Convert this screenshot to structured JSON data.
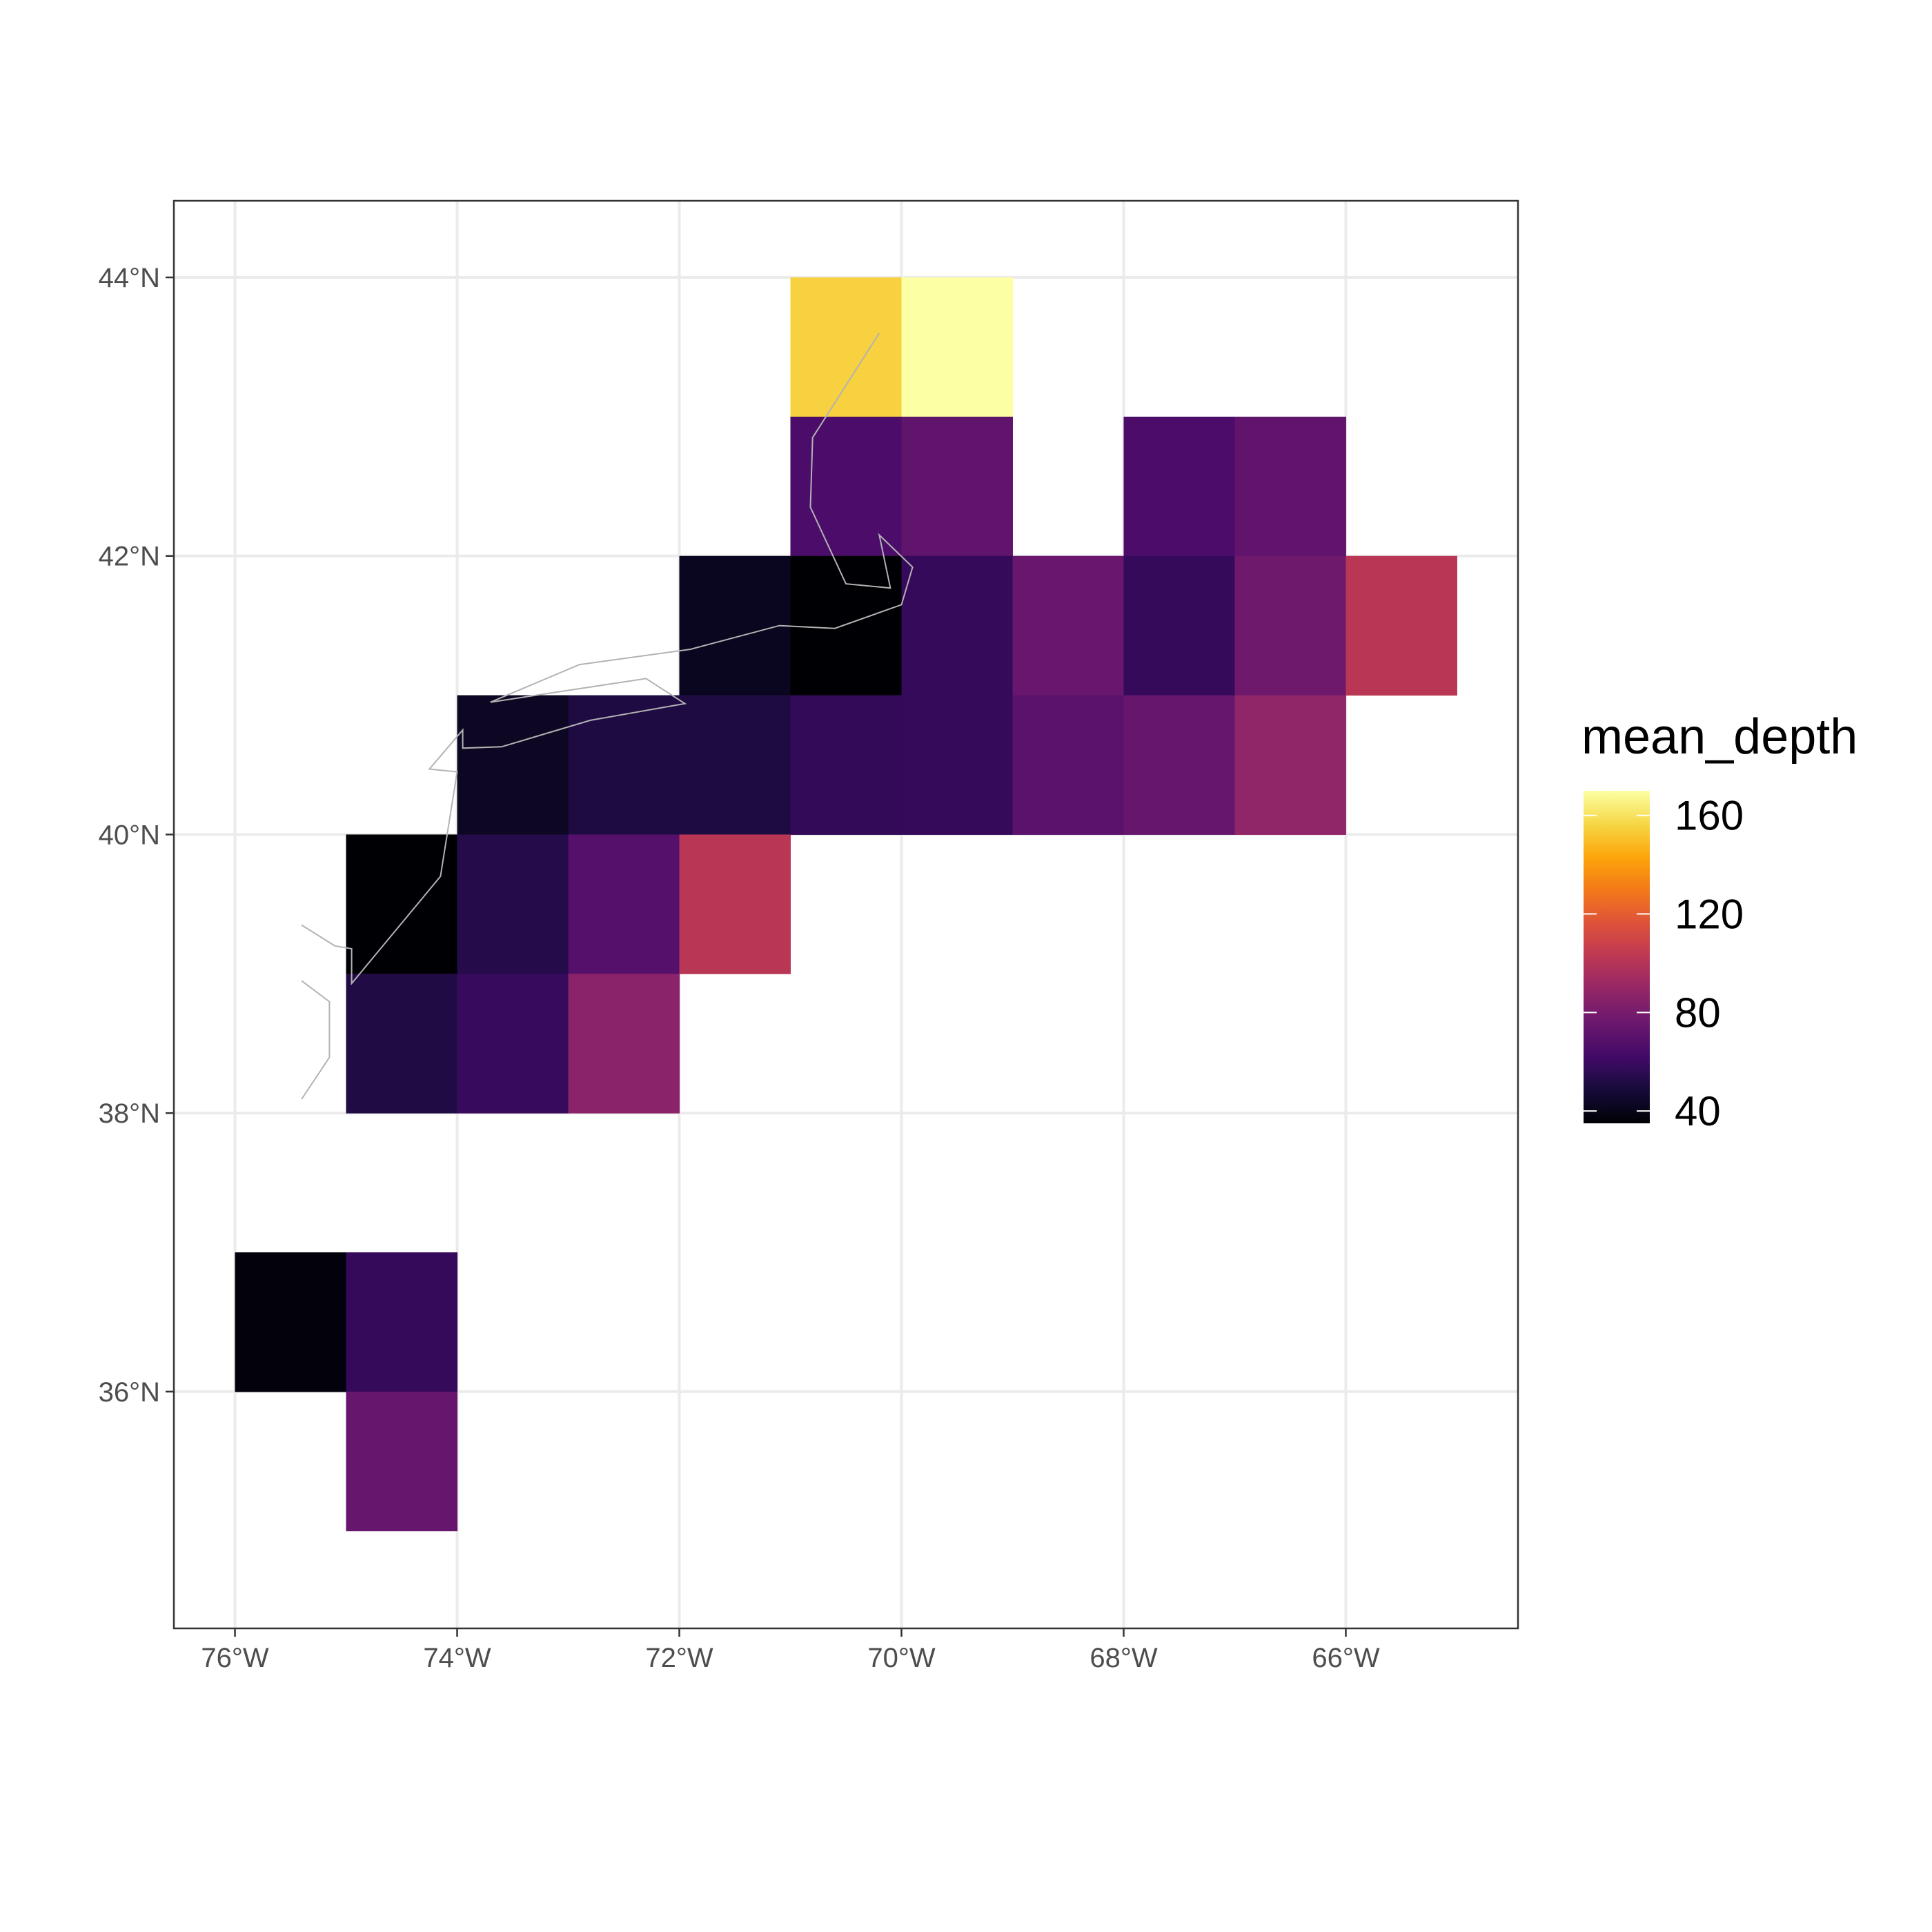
{
  "chart_data": {
    "type": "heatmap",
    "title": "",
    "xlabel": "",
    "ylabel": "",
    "xlim": [
      -76.55,
      -64.45
    ],
    "ylim": [
      34.3,
      44.55
    ],
    "x_ticks": [
      {
        "value": -76,
        "label": "76°W"
      },
      {
        "value": -74,
        "label": "74°W"
      },
      {
        "value": -72,
        "label": "72°W"
      },
      {
        "value": -70,
        "label": "70°W"
      },
      {
        "value": -68,
        "label": "68°W"
      },
      {
        "value": -66,
        "label": "66°W"
      }
    ],
    "y_ticks": [
      {
        "value": 36,
        "label": "36°N"
      },
      {
        "value": 38,
        "label": "38°N"
      },
      {
        "value": 40,
        "label": "40°N"
      },
      {
        "value": 42,
        "label": "42°N"
      },
      {
        "value": 44,
        "label": "44°N"
      }
    ],
    "grid": true,
    "legend": {
      "title": "mean_depth",
      "position": "right",
      "scale": "inferno",
      "domain": [
        35,
        170
      ],
      "breaks": [
        {
          "value": 160,
          "label": "160"
        },
        {
          "value": 120,
          "label": "120"
        },
        {
          "value": 80,
          "label": "80"
        },
        {
          "value": 40,
          "label": "40"
        }
      ]
    },
    "cells": [
      {
        "lon": -71,
        "lat": 43,
        "mean_depth": 155
      },
      {
        "lon": -70,
        "lat": 43,
        "mean_depth": 170
      },
      {
        "lon": -71,
        "lat": 42,
        "mean_depth": 65
      },
      {
        "lon": -70,
        "lat": 42,
        "mean_depth": 72
      },
      {
        "lon": -68,
        "lat": 42,
        "mean_depth": 65
      },
      {
        "lon": -67,
        "lat": 42,
        "mean_depth": 72
      },
      {
        "lon": -72,
        "lat": 41,
        "mean_depth": 42
      },
      {
        "lon": -71,
        "lat": 41,
        "mean_depth": 35
      },
      {
        "lon": -70,
        "lat": 41,
        "mean_depth": 58
      },
      {
        "lon": -69,
        "lat": 41,
        "mean_depth": 75
      },
      {
        "lon": -68,
        "lat": 41,
        "mean_depth": 58
      },
      {
        "lon": -67,
        "lat": 41,
        "mean_depth": 77
      },
      {
        "lon": -66,
        "lat": 41,
        "mean_depth": 102
      },
      {
        "lon": -74,
        "lat": 40,
        "mean_depth": 43
      },
      {
        "lon": -73,
        "lat": 40,
        "mean_depth": 51
      },
      {
        "lon": -72,
        "lat": 40,
        "mean_depth": 51
      },
      {
        "lon": -71,
        "lat": 40,
        "mean_depth": 57
      },
      {
        "lon": -70,
        "lat": 40,
        "mean_depth": 58
      },
      {
        "lon": -69,
        "lat": 40,
        "mean_depth": 70
      },
      {
        "lon": -68,
        "lat": 40,
        "mean_depth": 74
      },
      {
        "lon": -67,
        "lat": 40,
        "mean_depth": 88
      },
      {
        "lon": -75,
        "lat": 39,
        "mean_depth": 35
      },
      {
        "lon": -74,
        "lat": 39,
        "mean_depth": 53
      },
      {
        "lon": -73,
        "lat": 39,
        "mean_depth": 68
      },
      {
        "lon": -72,
        "lat": 39,
        "mean_depth": 102
      },
      {
        "lon": -75,
        "lat": 38,
        "mean_depth": 52
      },
      {
        "lon": -74,
        "lat": 38,
        "mean_depth": 59
      },
      {
        "lon": -73,
        "lat": 38,
        "mean_depth": 86
      },
      {
        "lon": -76,
        "lat": 36,
        "mean_depth": 37
      },
      {
        "lon": -75,
        "lat": 36,
        "mean_depth": 58
      },
      {
        "lon": -75,
        "lat": 35,
        "mean_depth": 74
      }
    ],
    "coastline": [
      [
        [
          -70.2,
          43.6
        ],
        [
          -70.8,
          42.85
        ],
        [
          -70.82,
          42.35
        ],
        [
          -70.5,
          41.8
        ],
        [
          -70.1,
          41.77
        ],
        [
          -70.2,
          42.15
        ],
        [
          -69.9,
          41.92
        ],
        [
          -70.0,
          41.65
        ],
        [
          -70.6,
          41.48
        ],
        [
          -71.1,
          41.5
        ],
        [
          -71.9,
          41.33
        ],
        [
          -72.9,
          41.22
        ],
        [
          -73.7,
          40.95
        ],
        [
          -72.3,
          41.12
        ],
        [
          -71.95,
          40.94
        ],
        [
          -72.8,
          40.82
        ],
        [
          -73.6,
          40.63
        ],
        [
          -73.95,
          40.62
        ],
        [
          -73.95,
          40.75
        ],
        [
          -74.25,
          40.47
        ],
        [
          -74.0,
          40.45
        ],
        [
          -74.15,
          39.7
        ],
        [
          -74.95,
          38.93
        ],
        [
          -74.95,
          39.18
        ],
        [
          -75.1,
          39.2
        ],
        [
          -75.4,
          39.35
        ]
      ],
      [
        [
          -75.4,
          38.95
        ],
        [
          -75.15,
          38.8
        ],
        [
          -75.15,
          38.4
        ],
        [
          -75.4,
          38.1
        ]
      ]
    ]
  }
}
